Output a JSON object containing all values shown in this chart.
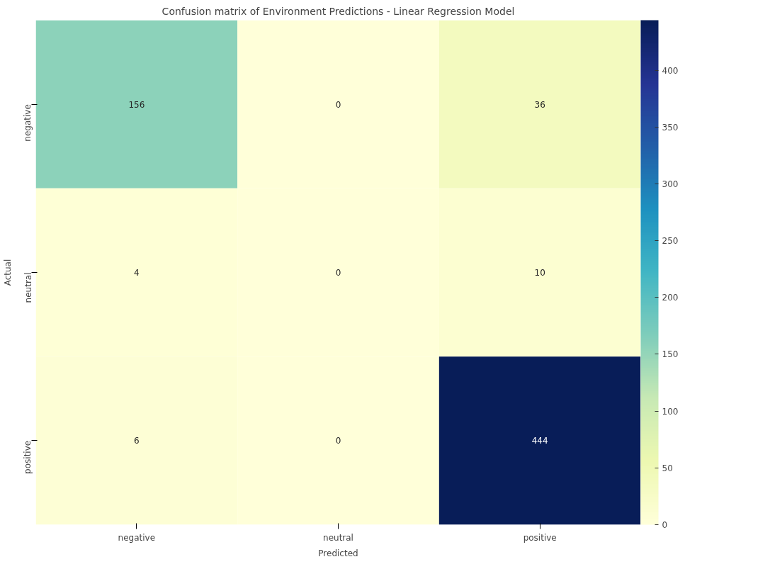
{
  "chart_data": {
    "type": "heatmap",
    "title": "Confusion matrix of Environment Predictions - Linear Regression Model",
    "xlabel": "Predicted",
    "ylabel": "Actual",
    "categories": [
      "negative",
      "neutral",
      "positive"
    ],
    "y_categories": [
      "negative",
      "neutral",
      "positive"
    ],
    "cells": [
      [
        156,
        0,
        36
      ],
      [
        4,
        0,
        10
      ],
      [
        6,
        0,
        444
      ]
    ],
    "data_labels": true,
    "clim": [
      0,
      444
    ],
    "cticks": [
      0,
      50,
      100,
      150,
      200,
      250,
      300,
      350,
      400
    ]
  }
}
